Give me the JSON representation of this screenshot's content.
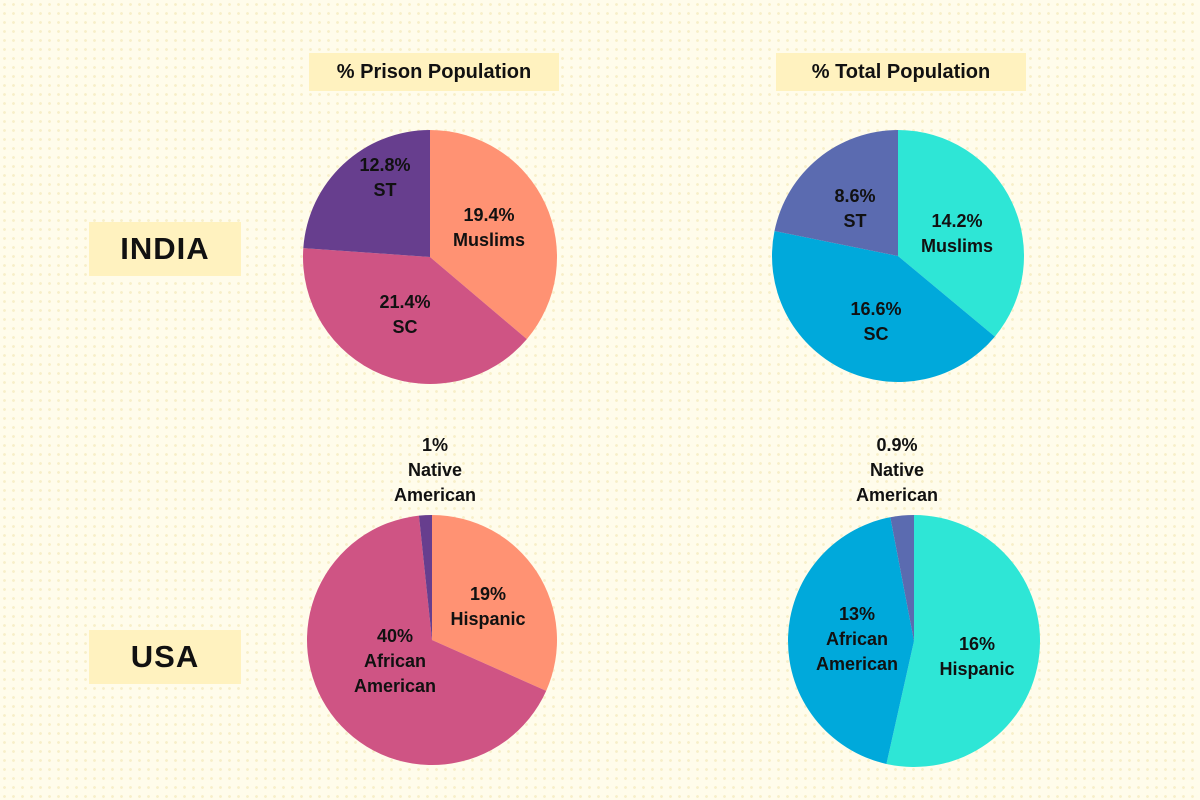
{
  "chart_data": [
    {
      "type": "pie",
      "id": "india-prison",
      "column": "% Prison Population",
      "row": "INDIA",
      "slices": [
        {
          "label": "Muslims",
          "value": 19.4,
          "text": "19.4%",
          "color": "#FF9273"
        },
        {
          "label": "SC",
          "value": 21.4,
          "text": "21.4%",
          "color": "#CF5484"
        },
        {
          "label": "ST",
          "value": 12.8,
          "text": "12.8%",
          "color": "#673E8E"
        }
      ]
    },
    {
      "type": "pie",
      "id": "india-total",
      "column": "% Total Population",
      "row": "INDIA",
      "slices": [
        {
          "label": "Muslims",
          "value": 14.2,
          "text": "14.2%",
          "color": "#2EE6D6"
        },
        {
          "label": "SC",
          "value": 16.6,
          "text": "16.6%",
          "color": "#00A9DB"
        },
        {
          "label": "ST",
          "value": 8.6,
          "text": "8.6%",
          "color": "#5B6BB0"
        }
      ]
    },
    {
      "type": "pie",
      "id": "usa-prison",
      "column": "% Prison Population",
      "row": "USA",
      "slices": [
        {
          "label": "Hispanic",
          "value": 19,
          "text": "19%",
          "color": "#FF9273"
        },
        {
          "label": "African American",
          "value": 40,
          "text": "40%",
          "color": "#CF5484"
        },
        {
          "label": "Native American",
          "value": 1,
          "text": "1%",
          "color": "#673E8E"
        }
      ]
    },
    {
      "type": "pie",
      "id": "usa-total",
      "column": "% Total Population",
      "row": "USA",
      "slices": [
        {
          "label": "Hispanic",
          "value": 16,
          "text": "16%",
          "color": "#2EE6D6"
        },
        {
          "label": "African American",
          "value": 13,
          "text": "13%",
          "color": "#00A9DB"
        },
        {
          "label": "Native American",
          "value": 0.9,
          "text": "0.9%",
          "color": "#5B6BB0"
        }
      ]
    }
  ],
  "headers": {
    "prison": "% Prison Population",
    "total": "% Total Population"
  },
  "rows": {
    "india": "INDIA",
    "usa": "USA"
  },
  "labels": {
    "ip": [
      [
        "19.4%",
        "Muslims"
      ],
      [
        "21.4%",
        "SC"
      ],
      [
        "12.8%",
        "ST"
      ]
    ],
    "it": [
      [
        "14.2%",
        "Muslims"
      ],
      [
        "16.6%",
        "SC"
      ],
      [
        "8.6%",
        "ST"
      ]
    ],
    "up": [
      [
        "19%",
        "Hispanic"
      ],
      [
        "40%",
        "African",
        "American"
      ],
      [
        "1%",
        "Native",
        "American"
      ]
    ],
    "ut": [
      [
        "16%",
        "Hispanic"
      ],
      [
        "13%",
        "African",
        "American"
      ],
      [
        "0.9%",
        "Native",
        "American"
      ]
    ]
  }
}
